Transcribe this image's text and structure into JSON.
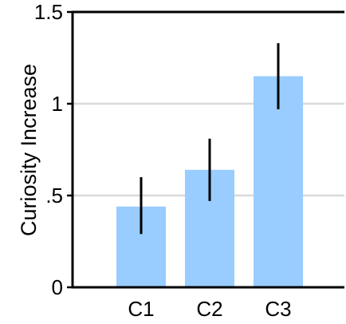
{
  "chart_data": {
    "type": "bar",
    "title": "",
    "xlabel": "",
    "ylabel": "Curiosity Increase",
    "categories": [
      "C1",
      "C2",
      "C3"
    ],
    "values": [
      0.44,
      0.64,
      1.15
    ],
    "error_low": [
      0.29,
      0.47,
      0.97
    ],
    "error_high": [
      0.6,
      0.81,
      1.33
    ],
    "ylim": [
      0,
      1.5
    ],
    "yticks": [
      0,
      0.5,
      1,
      1.5
    ],
    "ytick_labels": [
      "0",
      ".5",
      "1",
      "1.5"
    ],
    "grid": true,
    "legend": "none",
    "colors": {
      "bar": "#99ccff",
      "error_bar": "#000000",
      "grid": "#d9d9d9",
      "axis": "#000000"
    }
  }
}
